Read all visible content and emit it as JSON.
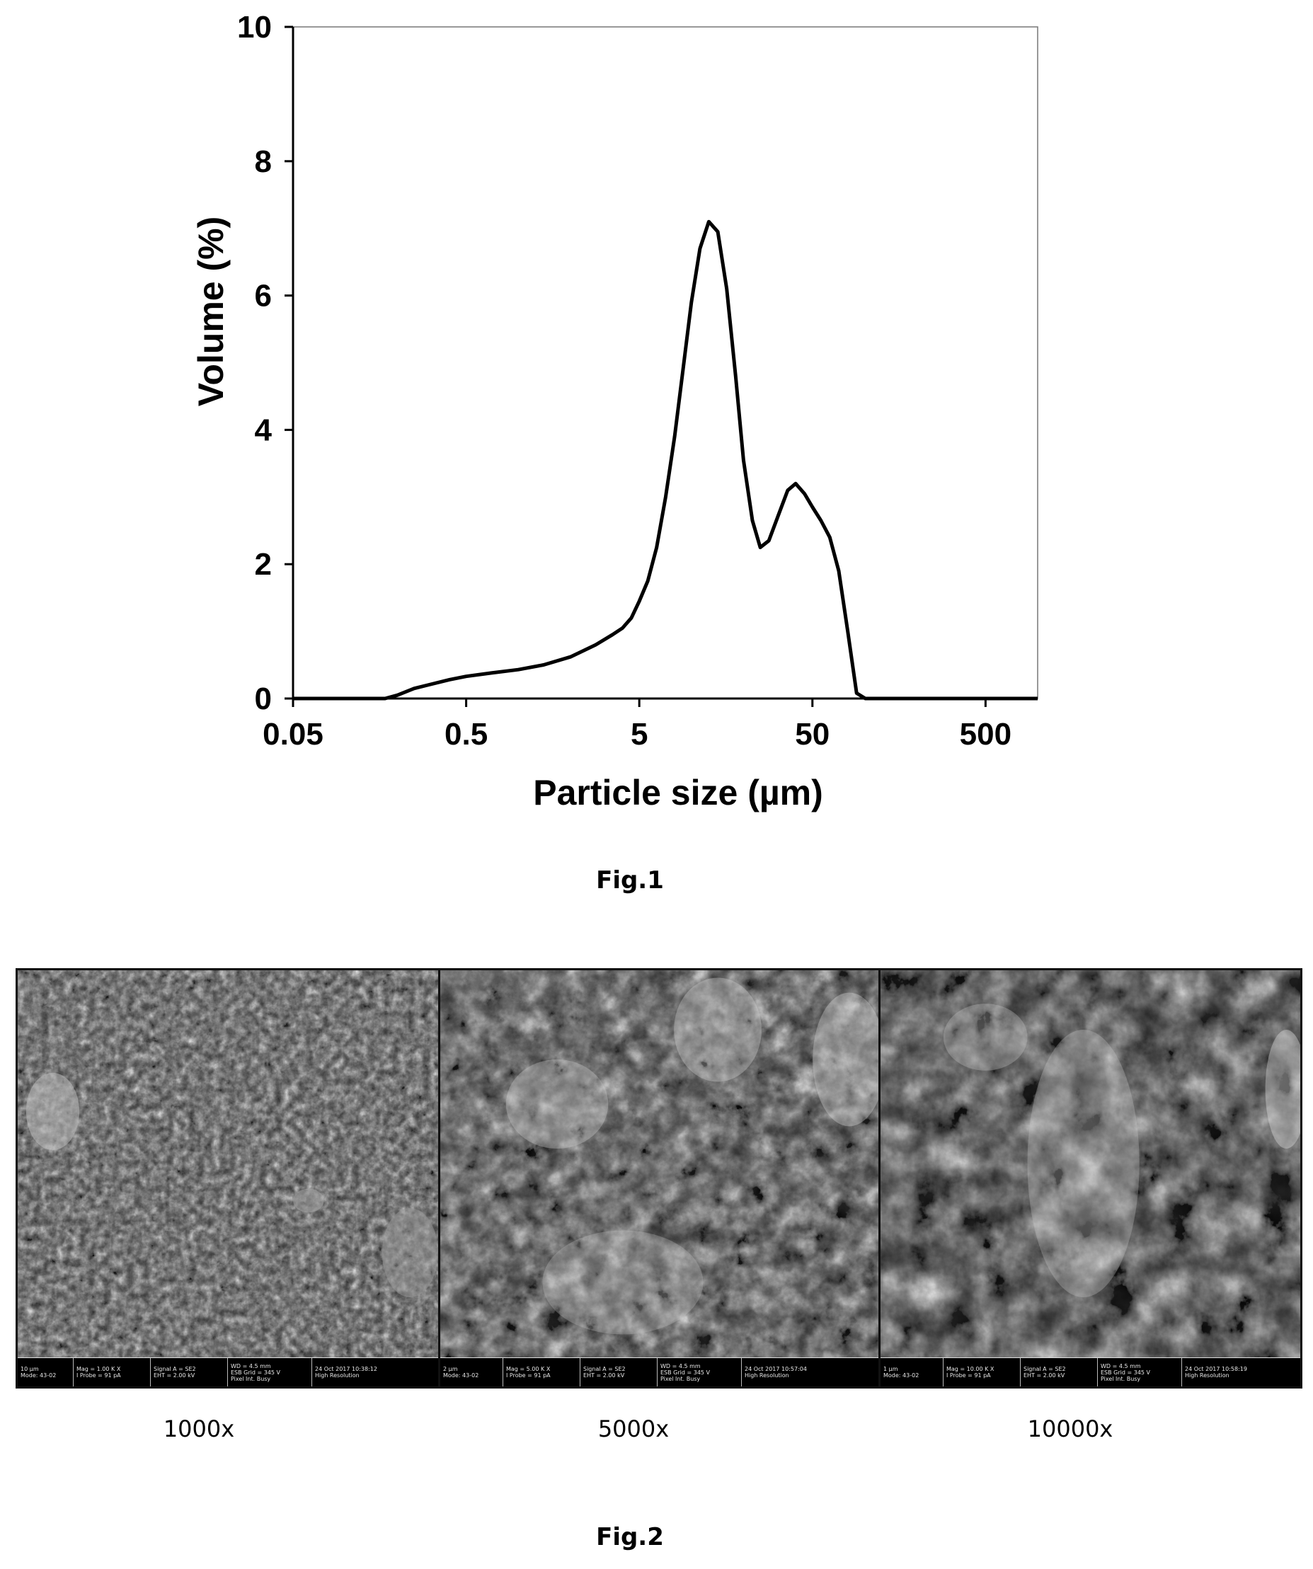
{
  "figure1": {
    "caption": "Fig.1",
    "chart_data": {
      "type": "line",
      "xlabel": "Particle size (µm)",
      "ylabel": "Volume (%)",
      "x_scale": "log",
      "xlim": [
        0.05,
        1000
      ],
      "ylim": [
        0,
        10
      ],
      "x_ticks": [
        "0.05",
        "0.5",
        "5",
        "50",
        "500"
      ],
      "y_ticks": [
        "0",
        "2",
        "4",
        "6",
        "8",
        "10"
      ],
      "grid": false,
      "series": [
        {
          "x": [
            0.05,
            0.08,
            0.12,
            0.15,
            0.17,
            0.2,
            0.25,
            0.3,
            0.4,
            0.5,
            0.7,
            1.0,
            1.4,
            2.0,
            2.8,
            3.5,
            4.0,
            4.5,
            5.0,
            5.6,
            6.3,
            7.1,
            8.0,
            9.0,
            10.0,
            11.2,
            12.6,
            14.2,
            16.0,
            18.0,
            20.0,
            22.5,
            25.0,
            28.0,
            32.0,
            36.0,
            40.0,
            45.0,
            50.0,
            56.0,
            63.0,
            71.0,
            80.0,
            90.0,
            101.0,
            113.0,
            130.0,
            150.0,
            200.0,
            300.0,
            500.0,
            1000.0
          ],
          "y": [
            0,
            0,
            0,
            0,
            0,
            0.05,
            0.15,
            0.2,
            0.28,
            0.33,
            0.38,
            0.43,
            0.5,
            0.62,
            0.8,
            0.95,
            1.05,
            1.2,
            1.45,
            1.75,
            2.25,
            3.0,
            3.9,
            4.95,
            5.9,
            6.7,
            7.1,
            6.95,
            6.1,
            4.8,
            3.55,
            2.65,
            2.25,
            2.35,
            2.75,
            3.1,
            3.2,
            3.05,
            2.85,
            2.65,
            2.4,
            1.9,
            1.0,
            0.08,
            0,
            0,
            0,
            0,
            0,
            0,
            0,
            0
          ]
        }
      ]
    }
  },
  "figure2": {
    "caption": "Fig.2",
    "panels": [
      {
        "label": "1000x",
        "databar": {
          "c1a": "10 µm",
          "c1b": "Mode: 43-02",
          "c2a": "Mag = 1.00 K X",
          "c2b": "I Probe = 91 pA",
          "c3a": "Signal A = SE2",
          "c3b": "EHT = 2.00 kV",
          "c4a": "WD = 4.5 mm",
          "c4b": "ESB Grid = 345 V",
          "c4c": "Pixel Int. Busy",
          "c5a": "24 Oct 2017  10:38:12",
          "c5b": "High Resolution"
        }
      },
      {
        "label": "5000x",
        "databar": {
          "c1a": "2 µm",
          "c1b": "Mode: 43-02",
          "c2a": "Mag = 5.00 K X",
          "c2b": "I Probe = 91 pA",
          "c3a": "Signal A = SE2",
          "c3b": "EHT = 2.00 kV",
          "c4a": "WD = 4.5 mm",
          "c4b": "ESB Grid = 345 V",
          "c4c": "Pixel Int. Busy",
          "c5a": "24 Oct 2017  10:57:04",
          "c5b": "High Resolution"
        }
      },
      {
        "label": "10000x",
        "databar": {
          "c1a": "1 µm",
          "c1b": "Mode: 43-02",
          "c2a": "Mag = 10.00 K X",
          "c2b": "I Probe = 91 pA",
          "c3a": "Signal A = SE2",
          "c3b": "EHT = 2.00 kV",
          "c4a": "WD = 4.5 mm",
          "c4b": "ESB Grid = 345 V",
          "c4c": "Pixel Int. Busy",
          "c5a": "24 Oct 2017  10:58:19",
          "c5b": "High Resolution"
        }
      }
    ]
  }
}
